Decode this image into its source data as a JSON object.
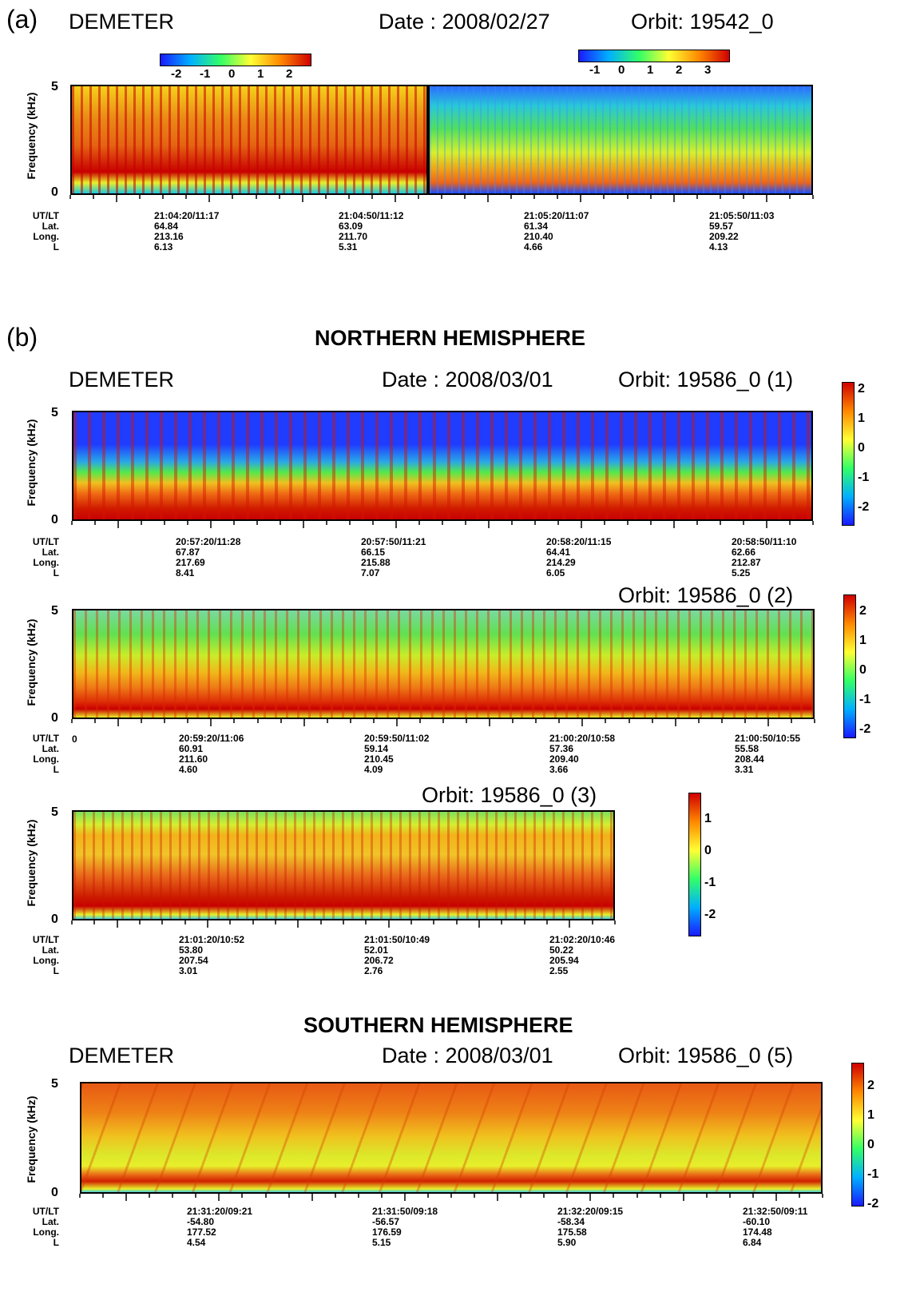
{
  "panel_a": {
    "label": "(a)",
    "satellite": "DEMETER",
    "date": "Date : 2008/02/27",
    "orbit": "Orbit: 19542_0",
    "y_label": "Frequency (kHz)",
    "y_ticks": [
      "5",
      "0"
    ],
    "colorbar_left": {
      "ticks": [
        "-2",
        "-1",
        "0",
        "1",
        "2"
      ]
    },
    "colorbar_right": {
      "ticks": [
        "-1",
        "0",
        "1",
        "2",
        "3"
      ]
    },
    "row_headers": [
      "UT/LT",
      "Lat.",
      "Long.",
      "L"
    ],
    "columns": [
      {
        "ut": "21:04:20/11:17",
        "lat": "64.84",
        "long": "213.16",
        "l": "6.13"
      },
      {
        "ut": "21:04:50/11:12",
        "lat": "63.09",
        "long": "211.70",
        "l": "5.31"
      },
      {
        "ut": "21:05:20/11:07",
        "lat": "61.34",
        "long": "210.40",
        "l": "4.66"
      },
      {
        "ut": "21:05:50/11:03",
        "lat": "59.57",
        "long": "209.22",
        "l": "4.13"
      }
    ]
  },
  "panel_b": {
    "label": "(b)",
    "northern_title": "NORTHERN HEMISPHERE",
    "southern_title": "SOUTHERN HEMISPHERE",
    "satellite": "DEMETER",
    "date_north": "Date : 2008/03/01",
    "date_south": "Date : 2008/03/01",
    "y_label": "Frequency (kHz)",
    "row_headers": [
      "UT/LT",
      "Lat.",
      "Long.",
      "L"
    ],
    "plot1": {
      "orbit": "Orbit: 19586_0 (1)",
      "colorbar": [
        "2",
        "1",
        "0",
        "-1",
        "-2"
      ],
      "columns": [
        {
          "ut": "20:57:20/11:28",
          "lat": "67.87",
          "long": "217.69",
          "l": "8.41"
        },
        {
          "ut": "20:57:50/11:21",
          "lat": "66.15",
          "long": "215.88",
          "l": "7.07"
        },
        {
          "ut": "20:58:20/11:15",
          "lat": "64.41",
          "long": "214.29",
          "l": "6.05"
        },
        {
          "ut": "20:58:50/11:10",
          "lat": "62.66",
          "long": "212.87",
          "l": "5.25"
        }
      ]
    },
    "plot2": {
      "orbit": "Orbit: 19586_0 (2)",
      "colorbar": [
        "2",
        "1",
        "0",
        "-1",
        "-2"
      ],
      "edge_tick": "0",
      "columns": [
        {
          "ut": "20:59:20/11:06",
          "lat": "60.91",
          "long": "211.60",
          "l": "4.60"
        },
        {
          "ut": "20:59:50/11:02",
          "lat": "59.14",
          "long": "210.45",
          "l": "4.09"
        },
        {
          "ut": "21:00:20/10:58",
          "lat": "57.36",
          "long": "209.40",
          "l": "3.66"
        },
        {
          "ut": "21:00:50/10:55",
          "lat": "55.58",
          "long": "208.44",
          "l": "3.31"
        }
      ]
    },
    "plot3": {
      "orbit": "Orbit: 19586_0 (3)",
      "colorbar": [
        "1",
        "0",
        "-1",
        "-2"
      ],
      "columns": [
        {
          "ut": "21:01:20/10:52",
          "lat": "53.80",
          "long": "207.54",
          "l": "3.01"
        },
        {
          "ut": "21:01:50/10:49",
          "lat": "52.01",
          "long": "206.72",
          "l": "2.76"
        },
        {
          "ut": "21:02:20/10:46",
          "lat": "50.22",
          "long": "205.94",
          "l": "2.55"
        }
      ]
    },
    "plot5": {
      "orbit": "Orbit: 19586_0 (5)",
      "colorbar": [
        "2",
        "1",
        "0",
        "-1",
        "-2"
      ],
      "columns": [
        {
          "ut": "21:31:20/09:21",
          "lat": "-54.80",
          "long": "177.52",
          "l": "4.54"
        },
        {
          "ut": "21:31:50/09:18",
          "lat": "-56.57",
          "long": "176.59",
          "l": "5.15"
        },
        {
          "ut": "21:32:20/09:15",
          "lat": "-58.34",
          "long": "175.58",
          "l": "5.90"
        },
        {
          "ut": "21:32:50/09:11",
          "lat": "-60.10",
          "long": "174.48",
          "l": "6.84"
        }
      ]
    },
    "y_ticks": [
      "5",
      "0"
    ]
  },
  "chart_data": [
    {
      "type": "heatmap",
      "title": "DEMETER",
      "orbit": "Orbit: 19542_0",
      "date": "2008/02/27",
      "ylabel": "Frequency (kHz)",
      "ylim": [
        0,
        5
      ],
      "x": [
        "21:04:20/11:17",
        "21:04:50/11:12",
        "21:05:20/11:07",
        "21:05:50/11:03"
      ],
      "colorbar_ranges": [
        [
          -2,
          2
        ],
        [
          -1,
          3
        ]
      ]
    },
    {
      "type": "heatmap",
      "orbit": "Orbit: 19586_0 (1)",
      "date": "2008/03/01",
      "ylabel": "Frequency (kHz)",
      "ylim": [
        0,
        5
      ],
      "x": [
        "20:57:20/11:28",
        "20:57:50/11:21",
        "20:58:20/11:15",
        "20:58:50/11:10"
      ],
      "colorbar_range": [
        -2,
        2
      ]
    },
    {
      "type": "heatmap",
      "orbit": "Orbit: 19586_0 (2)",
      "ylabel": "Frequency (kHz)",
      "ylim": [
        0,
        5
      ],
      "x": [
        "20:59:20/11:06",
        "20:59:50/11:02",
        "21:00:20/10:58",
        "21:00:50/10:55"
      ],
      "colorbar_range": [
        -2,
        2
      ]
    },
    {
      "type": "heatmap",
      "orbit": "Orbit: 19586_0 (3)",
      "ylabel": "Frequency (kHz)",
      "ylim": [
        0,
        5
      ],
      "x": [
        "21:01:20/10:52",
        "21:01:50/10:49",
        "21:02:20/10:46"
      ],
      "colorbar_range": [
        -2,
        1
      ]
    },
    {
      "type": "heatmap",
      "orbit": "Orbit: 19586_0 (5)",
      "date": "2008/03/01",
      "ylabel": "Frequency (kHz)",
      "ylim": [
        0,
        5
      ],
      "x": [
        "21:31:20/09:21",
        "21:31:50/09:18",
        "21:32:20/09:15",
        "21:32:50/09:11"
      ],
      "colorbar_range": [
        -2,
        2
      ]
    }
  ]
}
